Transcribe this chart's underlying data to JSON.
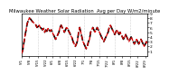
{
  "title": "Milwaukee Weather Solar Radiation  Avg per Day W/m2/minute",
  "title_fontsize": 3.8,
  "line_color": "#DD0000",
  "black_color": "#000000",
  "background_color": "#ffffff",
  "ylim": [
    0,
    9
  ],
  "yticks": [
    1,
    2,
    3,
    4,
    5,
    6,
    7,
    8,
    9
  ],
  "ytick_fontsize": 3.2,
  "xtick_fontsize": 2.8,
  "vline_color": "#aaaaaa",
  "x_values": [
    0,
    1,
    2,
    3,
    4,
    5,
    6,
    7,
    8,
    9,
    10,
    11,
    12,
    13,
    14,
    15,
    16,
    17,
    18,
    19,
    20,
    21,
    22,
    23,
    24,
    25,
    26,
    27,
    28,
    29,
    30,
    31,
    32,
    33,
    34,
    35,
    36,
    37,
    38,
    39,
    40,
    41,
    42,
    43,
    44,
    45,
    46,
    47,
    48,
    49,
    50,
    51,
    52,
    53,
    54,
    55,
    56,
    57,
    58,
    59,
    60,
    61,
    62,
    63,
    64,
    65,
    66,
    67,
    68,
    69,
    70,
    71,
    72,
    73,
    74,
    75,
    76,
    77,
    78,
    79,
    80,
    81,
    82,
    83,
    84,
    85,
    86,
    87,
    88,
    89,
    90,
    91,
    92,
    93,
    94,
    95,
    96,
    97,
    98,
    99,
    100,
    101,
    102,
    103,
    104,
    105,
    106,
    107,
    108,
    109,
    110,
    111,
    112,
    113,
    114,
    115
  ],
  "y_values": [
    0.5,
    1.2,
    2.8,
    4.2,
    5.5,
    6.8,
    7.5,
    8.0,
    7.8,
    7.5,
    7.2,
    7.0,
    6.8,
    6.5,
    6.0,
    6.2,
    6.5,
    6.0,
    5.8,
    5.5,
    5.8,
    5.0,
    5.5,
    5.2,
    5.8,
    5.5,
    5.2,
    5.5,
    5.0,
    4.5,
    4.0,
    3.5,
    4.0,
    4.5,
    5.0,
    6.0,
    6.5,
    6.0,
    5.5,
    5.0,
    5.5,
    6.0,
    5.8,
    5.2,
    4.8,
    4.2,
    3.8,
    3.0,
    2.5,
    2.0,
    2.5,
    3.2,
    5.0,
    6.0,
    5.0,
    4.0,
    3.0,
    2.5,
    2.0,
    1.5,
    2.0,
    3.0,
    3.5,
    5.0,
    5.5,
    6.0,
    5.5,
    5.0,
    5.5,
    6.0,
    5.5,
    5.0,
    4.5,
    4.0,
    3.5,
    3.0,
    3.5,
    4.0,
    4.5,
    5.0,
    6.0,
    6.5,
    6.0,
    5.5,
    5.0,
    4.5,
    5.0,
    5.5,
    5.0,
    4.5,
    5.0,
    4.5,
    4.0,
    3.5,
    4.0,
    4.5,
    4.0,
    3.5,
    3.0,
    3.5,
    4.0,
    3.5,
    3.0,
    2.5,
    3.0,
    3.5,
    3.0,
    2.5,
    3.0,
    3.5,
    3.0,
    2.5,
    2.0,
    2.5,
    3.0,
    2.5
  ],
  "vlines_x": [
    15,
    28,
    42,
    57,
    71,
    85,
    99
  ],
  "xtick_positions": [
    0,
    7,
    15,
    22,
    28,
    35,
    42,
    49,
    57,
    64,
    71,
    78,
    85,
    92,
    99,
    106,
    113
  ],
  "xtick_labels": [
    "5/1",
    "5/8",
    "5/15",
    "5/22",
    "6/1",
    "6/8",
    "6/15",
    "6/22",
    "7/1",
    "7/8",
    "7/15",
    "7/22",
    "8/1",
    "8/8",
    "8/15",
    "8/22",
    "8/29"
  ]
}
